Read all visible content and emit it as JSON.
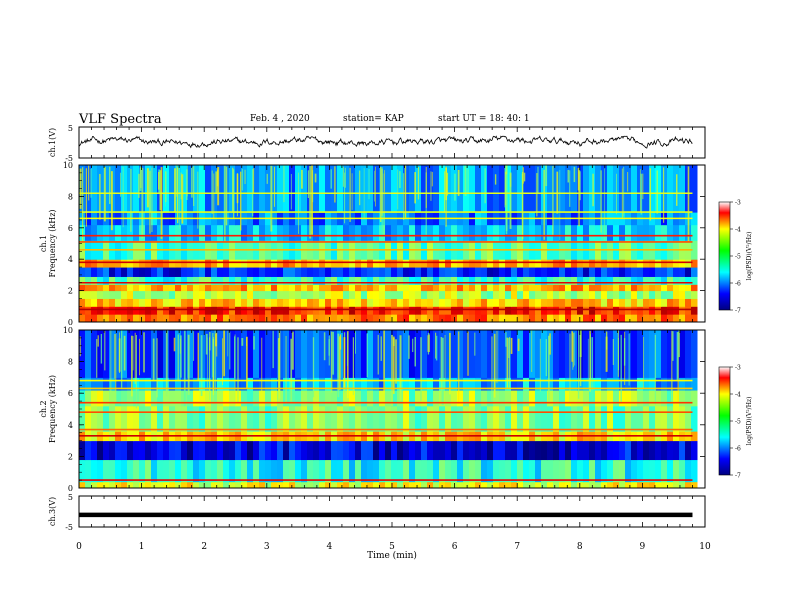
{
  "header": {
    "title": "VLF Spectra",
    "date": "Feb. 4 , 2020",
    "station": "station= KAP",
    "start": "start UT = 18: 40: 1"
  },
  "chart_data": [
    {
      "id": "ch1-waveform",
      "type": "line",
      "ylabel": "ch.1(V)",
      "ylim": [
        -5,
        5
      ],
      "yticks": [
        "5",
        "-5"
      ],
      "xlim": [
        0,
        10
      ],
      "description_series": "noisy voltage trace",
      "values_approx_range": [
        -1.2,
        1.6
      ]
    },
    {
      "id": "ch1-spectrogram",
      "type": "heatmap",
      "ylabel": "ch.1",
      "ylabel2": "Frequency (kHz)",
      "xlim": [
        0,
        9.8
      ],
      "ylim": [
        0,
        10
      ],
      "yticks": [
        "0",
        "2",
        "4",
        "6",
        "8",
        "10"
      ],
      "colorbar": {
        "label": "log(PSD)(V²/Hz)",
        "range": [
          -7,
          -3
        ],
        "ticks": [
          "-3",
          "-4",
          "-5",
          "-6",
          "-7"
        ]
      },
      "bands_khz": [
        {
          "from": 0.0,
          "to": 0.5,
          "level": -4.0
        },
        {
          "from": 0.5,
          "to": 1.0,
          "level": -3.6
        },
        {
          "from": 1.0,
          "to": 1.5,
          "level": -4.3
        },
        {
          "from": 1.5,
          "to": 2.0,
          "level": -4.8
        },
        {
          "from": 2.0,
          "to": 2.4,
          "level": -4.2
        },
        {
          "from": 2.4,
          "to": 2.9,
          "level": -5.3
        },
        {
          "from": 2.9,
          "to": 3.5,
          "level": -6.4
        },
        {
          "from": 3.5,
          "to": 4.0,
          "level": -4.2
        },
        {
          "from": 4.0,
          "to": 5.2,
          "level": -5.2
        },
        {
          "from": 5.2,
          "to": 6.2,
          "level": -5.7
        },
        {
          "from": 6.2,
          "to": 7.0,
          "level": -6.0
        },
        {
          "from": 7.0,
          "to": 10.0,
          "level": -5.9
        }
      ],
      "lines_khz": [
        {
          "f": 0.8,
          "level": -3.2
        },
        {
          "f": 2.5,
          "level": -3.4
        },
        {
          "f": 3.8,
          "level": -3.3
        },
        {
          "f": 4.6,
          "level": -4.2
        },
        {
          "f": 5.1,
          "level": -3.8
        },
        {
          "f": 5.5,
          "level": -3.6
        },
        {
          "f": 6.6,
          "level": -4.5
        },
        {
          "f": 7.0,
          "level": -4.6
        },
        {
          "f": 8.2,
          "level": -4.6
        }
      ]
    },
    {
      "id": "ch2-spectrogram",
      "type": "heatmap",
      "ylabel": "ch.2",
      "ylabel2": "Frequency (kHz)",
      "xlim": [
        0,
        9.8
      ],
      "ylim": [
        0,
        10
      ],
      "yticks": [
        "0",
        "2",
        "4",
        "6",
        "8",
        "10"
      ],
      "colorbar": {
        "label": "log(PSD)(V²/Hz)",
        "range": [
          -7,
          -3
        ],
        "ticks": [
          "-3",
          "-4",
          "-5",
          "-6",
          "-7"
        ]
      },
      "bands_khz": [
        {
          "from": 0.0,
          "to": 0.4,
          "level": -4.6
        },
        {
          "from": 0.4,
          "to": 1.8,
          "level": -5.4
        },
        {
          "from": 1.8,
          "to": 3.0,
          "level": -6.6
        },
        {
          "from": 3.0,
          "to": 3.6,
          "level": -4.4
        },
        {
          "from": 3.6,
          "to": 5.2,
          "level": -5.0
        },
        {
          "from": 5.2,
          "to": 6.2,
          "level": -4.9
        },
        {
          "from": 6.2,
          "to": 7.0,
          "level": -5.8
        },
        {
          "from": 7.0,
          "to": 10.0,
          "level": -6.2
        }
      ],
      "lines_khz": [
        {
          "f": 0.5,
          "level": -3.4
        },
        {
          "f": 3.3,
          "level": -3.3
        },
        {
          "f": 3.7,
          "level": -3.9
        },
        {
          "f": 4.8,
          "level": -3.8
        },
        {
          "f": 5.4,
          "level": -3.7
        },
        {
          "f": 6.3,
          "level": -4.3
        },
        {
          "f": 6.8,
          "level": -4.5
        }
      ]
    },
    {
      "id": "ch3-waveform",
      "type": "line",
      "ylabel": "ch.3(V)",
      "ylim": [
        -5,
        5
      ],
      "yticks": [
        "5",
        "-5"
      ],
      "xlim": [
        0,
        10
      ],
      "x": [
        0,
        9.8
      ],
      "values": [
        -1.1,
        -1.1
      ]
    }
  ],
  "xaxis": {
    "label": "Time (min)",
    "ticks": [
      "0",
      "1",
      "2",
      "3",
      "4",
      "5",
      "6",
      "7",
      "8",
      "9",
      "10"
    ],
    "range": [
      0,
      10
    ]
  }
}
